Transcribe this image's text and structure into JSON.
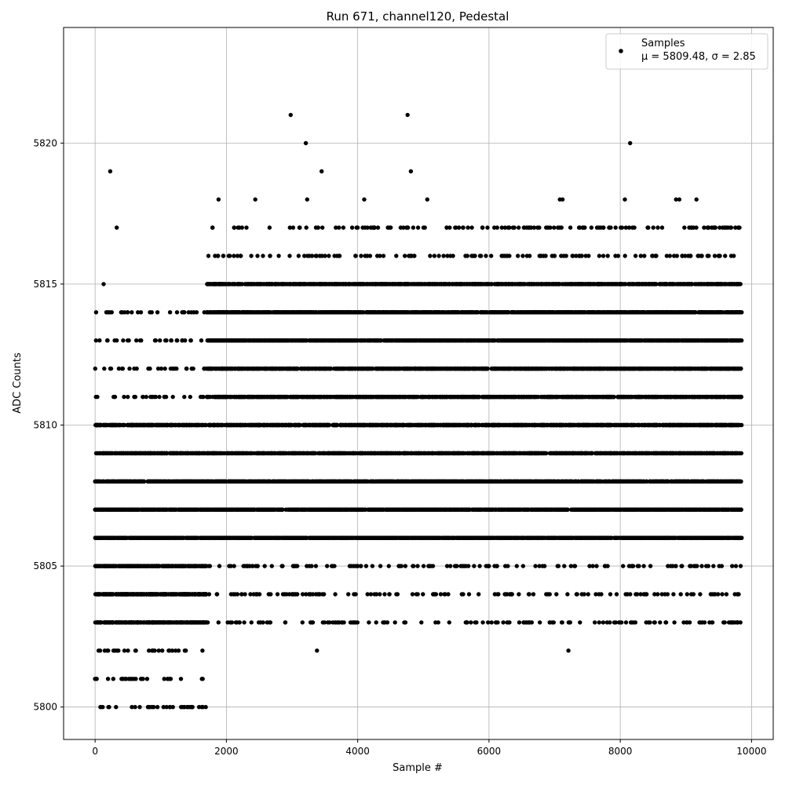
{
  "chart_data": {
    "type": "scatter",
    "title": "Run 671, channel120, Pedestal",
    "xlabel": "Sample #",
    "ylabel": "ADC Counts",
    "xlim": [
      -480,
      10330
    ],
    "ylim": [
      5798.85,
      5824.1
    ],
    "xticks": [
      0,
      2000,
      4000,
      6000,
      8000,
      10000
    ],
    "xtick_labels": [
      "0",
      "2000",
      "4000",
      "6000",
      "8000",
      "10000"
    ],
    "yticks": [
      5800,
      5805,
      5810,
      5815,
      5820
    ],
    "ytick_labels": [
      "5800",
      "5805",
      "5810",
      "5815",
      "5820"
    ],
    "grid": true,
    "legend": {
      "placement": "top-right",
      "entries": [
        {
          "name": "Samples",
          "stats": "μ = 5809.48, σ = 2.85"
        }
      ]
    },
    "series": [
      {
        "name": "Samples",
        "marker": "circle",
        "color": "#000000",
        "sample_count": 9850,
        "mean": 5809.48,
        "sigma": 2.85,
        "density_profile": [
          {
            "x_range": [
              0,
              1700
            ],
            "dense_levels": [
              5803,
              5804,
              5805,
              5806,
              5807,
              5808,
              5809,
              5810
            ],
            "sparse_levels": [
              5800,
              5801,
              5802,
              5811,
              5812,
              5813,
              5814
            ]
          },
          {
            "x_range": [
              1700,
              9850
            ],
            "dense_levels": [
              5806,
              5807,
              5808,
              5809,
              5810,
              5811,
              5812,
              5813,
              5814,
              5815
            ],
            "sparse_levels": [
              5803,
              5804,
              5805,
              5816,
              5817
            ]
          }
        ],
        "outliers": [
          {
            "x": 230,
            "y": 5819
          },
          {
            "x": 330,
            "y": 5817
          },
          {
            "x": 130,
            "y": 5815
          },
          {
            "x": 560,
            "y": 5800
          },
          {
            "x": 680,
            "y": 5800
          },
          {
            "x": 950,
            "y": 5800
          },
          {
            "x": 1140,
            "y": 5800
          },
          {
            "x": 1360,
            "y": 5800
          },
          {
            "x": 1400,
            "y": 5800
          },
          {
            "x": 1880,
            "y": 5818
          },
          {
            "x": 2440,
            "y": 5818
          },
          {
            "x": 2980,
            "y": 5821
          },
          {
            "x": 3210,
            "y": 5820
          },
          {
            "x": 3230,
            "y": 5818
          },
          {
            "x": 3450,
            "y": 5819
          },
          {
            "x": 3380,
            "y": 5802
          },
          {
            "x": 4100,
            "y": 5818
          },
          {
            "x": 4760,
            "y": 5821
          },
          {
            "x": 4810,
            "y": 5819
          },
          {
            "x": 5060,
            "y": 5818
          },
          {
            "x": 7080,
            "y": 5818
          },
          {
            "x": 7120,
            "y": 5818
          },
          {
            "x": 7210,
            "y": 5802
          },
          {
            "x": 8070,
            "y": 5818
          },
          {
            "x": 8150,
            "y": 5820
          },
          {
            "x": 8850,
            "y": 5818
          },
          {
            "x": 8900,
            "y": 5818
          },
          {
            "x": 9160,
            "y": 5818
          },
          {
            "x": 3790,
            "y": 5803
          },
          {
            "x": 4170,
            "y": 5803
          },
          {
            "x": 4710,
            "y": 5803
          },
          {
            "x": 6040,
            "y": 5803
          },
          {
            "x": 6530,
            "y": 5803
          },
          {
            "x": 8230,
            "y": 5803
          },
          {
            "x": 9250,
            "y": 5803
          },
          {
            "x": 9790,
            "y": 5803
          }
        ]
      }
    ]
  }
}
